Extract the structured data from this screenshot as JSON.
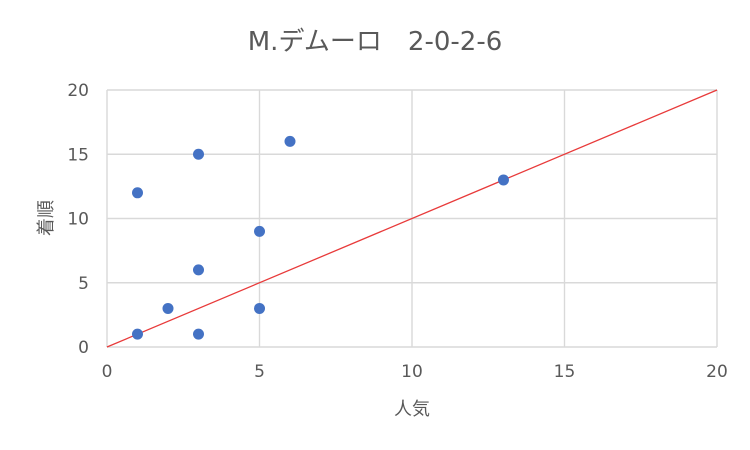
{
  "chart_data": {
    "type": "scatter",
    "title": "M.デムーロ　2-0-2-6",
    "xlabel": "人気",
    "ylabel": "着順",
    "xlim": [
      0,
      20
    ],
    "ylim": [
      0,
      20
    ],
    "x_ticks": [
      "0",
      "5",
      "10",
      "15",
      "20"
    ],
    "y_ticks": [
      "0",
      "5",
      "10",
      "15",
      "20"
    ],
    "grid": true,
    "points": [
      {
        "x": 1,
        "y": 1
      },
      {
        "x": 1,
        "y": 12
      },
      {
        "x": 2,
        "y": 3
      },
      {
        "x": 3,
        "y": 1
      },
      {
        "x": 3,
        "y": 6
      },
      {
        "x": 3,
        "y": 15
      },
      {
        "x": 5,
        "y": 3
      },
      {
        "x": 5,
        "y": 9
      },
      {
        "x": 6,
        "y": 16
      },
      {
        "x": 13,
        "y": 13
      }
    ],
    "reference_line": {
      "x": [
        0,
        20
      ],
      "y": [
        0,
        20
      ]
    },
    "colors": {
      "points": "#4472c4",
      "reference_line": "#e83a3a",
      "text": "#595959",
      "grid": "#d9d9d9"
    }
  }
}
